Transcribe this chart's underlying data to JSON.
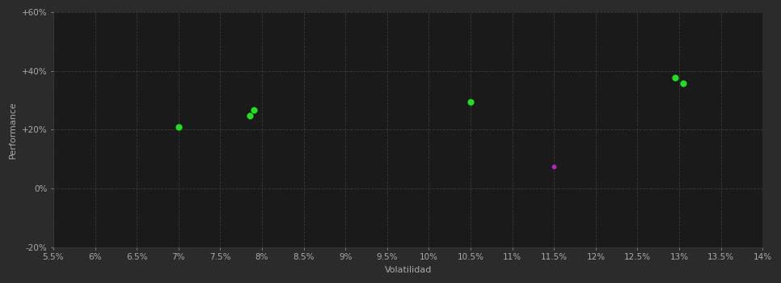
{
  "background_color": "#2b2b2b",
  "plot_bg_color": "#1a1a1a",
  "grid_color": "#3a3a3a",
  "text_color": "#aaaaaa",
  "xlabel": "Volatilidad",
  "ylabel": "Performance",
  "xlim": [
    0.055,
    0.14
  ],
  "ylim": [
    -0.2,
    0.6
  ],
  "xticks": [
    0.055,
    0.06,
    0.065,
    0.07,
    0.075,
    0.08,
    0.085,
    0.09,
    0.095,
    0.1,
    0.105,
    0.11,
    0.115,
    0.12,
    0.125,
    0.13,
    0.135,
    0.14
  ],
  "yticks": [
    -0.2,
    0.0,
    0.2,
    0.4,
    0.6
  ],
  "ytick_labels": [
    "-20%",
    "0%",
    "+20%",
    "+40%",
    "+60%"
  ],
  "xtick_labels": [
    "5.5%",
    "6%",
    "6.5%",
    "7%",
    "7.5%",
    "8%",
    "8.5%",
    "9%",
    "9.5%",
    "10%",
    "10.5%",
    "11%",
    "11.5%",
    "12%",
    "12.5%",
    "13%",
    "13.5%",
    "14%"
  ],
  "green_points": [
    [
      0.07,
      0.21
    ],
    [
      0.079,
      0.268
    ],
    [
      0.0785,
      0.247
    ],
    [
      0.105,
      0.295
    ],
    [
      0.1295,
      0.378
    ],
    [
      0.1305,
      0.358
    ]
  ],
  "magenta_points": [
    [
      0.115,
      0.075
    ]
  ],
  "green_color": "#22dd22",
  "magenta_color": "#bb22bb",
  "green_size": 35,
  "magenta_size": 18,
  "axis_fontsize": 8,
  "tick_fontsize": 7.5
}
